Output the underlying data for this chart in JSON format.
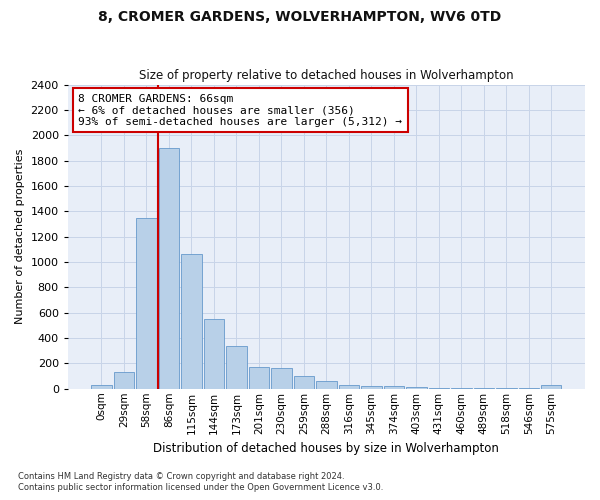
{
  "title": "8, CROMER GARDENS, WOLVERHAMPTON, WV6 0TD",
  "subtitle": "Size of property relative to detached houses in Wolverhampton",
  "xlabel": "Distribution of detached houses by size in Wolverhampton",
  "ylabel": "Number of detached properties",
  "bar_labels": [
    "0sqm",
    "29sqm",
    "58sqm",
    "86sqm",
    "115sqm",
    "144sqm",
    "173sqm",
    "201sqm",
    "230sqm",
    "259sqm",
    "288sqm",
    "316sqm",
    "345sqm",
    "374sqm",
    "403sqm",
    "431sqm",
    "460sqm",
    "489sqm",
    "518sqm",
    "546sqm",
    "575sqm"
  ],
  "bar_values": [
    30,
    130,
    1350,
    1900,
    1060,
    550,
    340,
    170,
    160,
    100,
    60,
    30,
    20,
    18,
    10,
    5,
    5,
    5,
    5,
    5,
    30
  ],
  "bar_color": "#b8d0e8",
  "bar_edge_color": "#6699cc",
  "vline_x_index": 2.5,
  "vline_color": "#cc0000",
  "annotation_text": "8 CROMER GARDENS: 66sqm\n← 6% of detached houses are smaller (356)\n93% of semi-detached houses are larger (5,312) →",
  "annotation_box_color": "#ffffff",
  "annotation_box_edge_color": "#cc0000",
  "ylim_max": 2400,
  "ytick_step": 200,
  "grid_color": "#c8d4e8",
  "background_color": "#e8eef8",
  "footer_line1": "Contains HM Land Registry data © Crown copyright and database right 2024.",
  "footer_line2": "Contains public sector information licensed under the Open Government Licence v3.0."
}
